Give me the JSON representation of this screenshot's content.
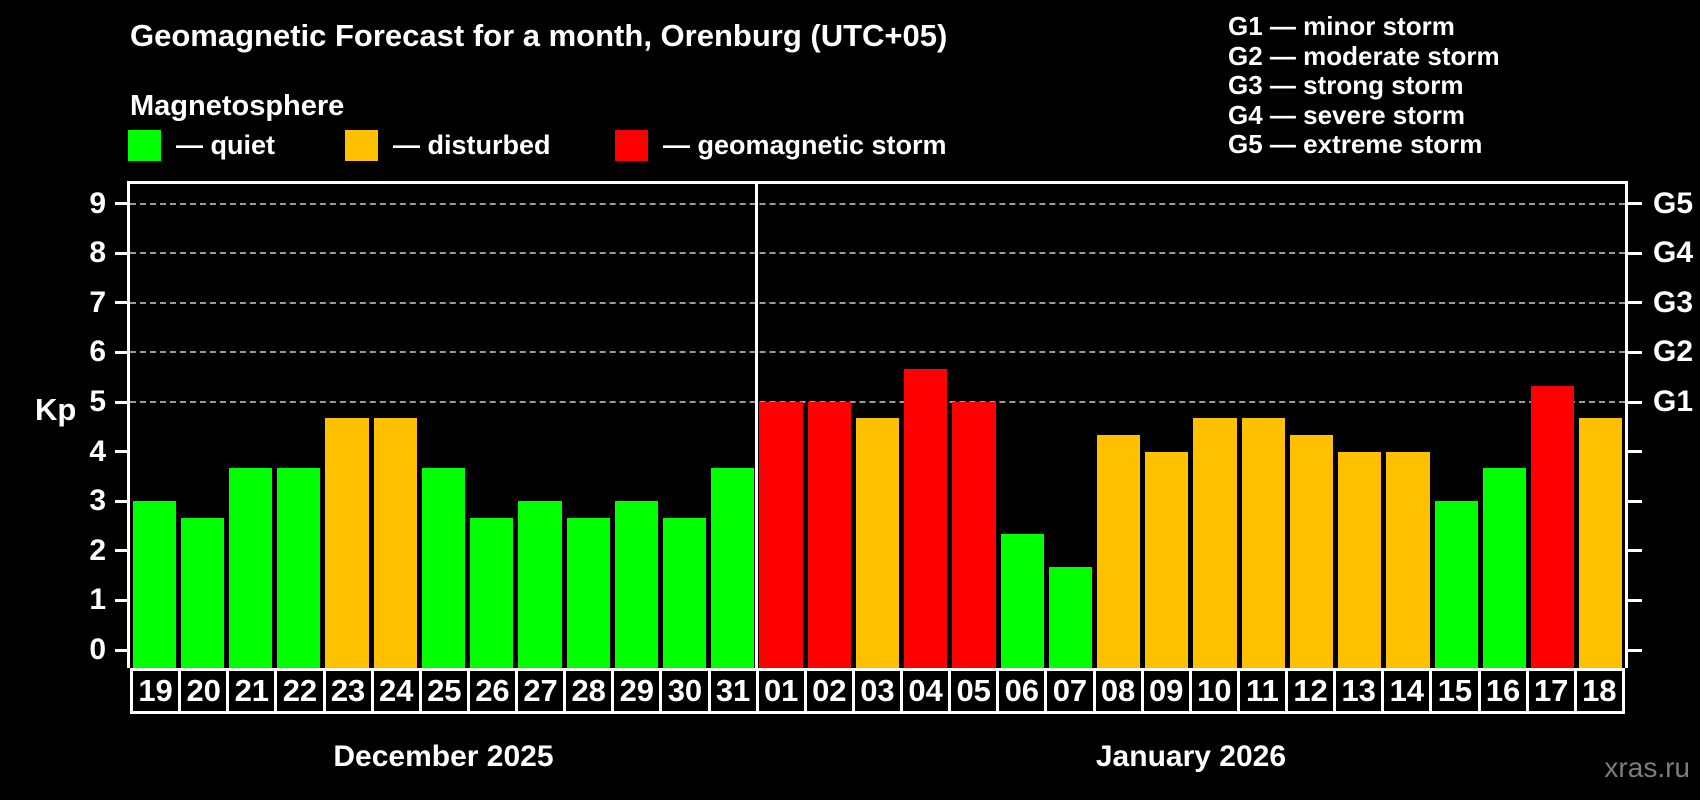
{
  "header": {
    "title": "Geomagnetic Forecast for a month, Orenburg (UTC+05)",
    "subtitle": "Magnetosphere",
    "legend": [
      {
        "key": "quiet",
        "label": "— quiet",
        "color": "#00ff00"
      },
      {
        "key": "disturbed",
        "label": "— disturbed",
        "color": "#ffc000"
      },
      {
        "key": "storm",
        "label": "— geomagnetic storm",
        "color": "#ff0000"
      }
    ],
    "g_scale": [
      "G1 — minor storm",
      "G2 — moderate storm",
      "G3 — strong storm",
      "G4 — severe storm",
      "G5 — extreme storm"
    ]
  },
  "chart_data": {
    "type": "bar",
    "title": "Geomagnetic Forecast for a month, Orenburg (UTC+05)",
    "subtitle": "Magnetosphere",
    "ylabel": "Kp",
    "ylim": [
      0,
      9
    ],
    "y_ticks": [
      0,
      1,
      2,
      3,
      4,
      5,
      6,
      7,
      8,
      9
    ],
    "grid": "horizontal dashed lines at Kp 5–9 (storm levels)",
    "legend_position": "top",
    "g_levels": [
      {
        "kp": 5,
        "label": "G1"
      },
      {
        "kp": 6,
        "label": "G2"
      },
      {
        "kp": 7,
        "label": "G3"
      },
      {
        "kp": 8,
        "label": "G4"
      },
      {
        "kp": 9,
        "label": "G5"
      }
    ],
    "level_colors": {
      "quiet": "#00ff00",
      "disturbed": "#ffc000",
      "storm": "#ff0000"
    },
    "months": [
      {
        "label": "December 2025",
        "days": [
          {
            "day": "19",
            "kp": 3.0,
            "level": "quiet"
          },
          {
            "day": "20",
            "kp": 2.67,
            "level": "quiet"
          },
          {
            "day": "21",
            "kp": 3.67,
            "level": "quiet"
          },
          {
            "day": "22",
            "kp": 3.67,
            "level": "quiet"
          },
          {
            "day": "23",
            "kp": 4.67,
            "level": "disturbed"
          },
          {
            "day": "24",
            "kp": 4.67,
            "level": "disturbed"
          },
          {
            "day": "25",
            "kp": 3.67,
            "level": "quiet"
          },
          {
            "day": "26",
            "kp": 2.67,
            "level": "quiet"
          },
          {
            "day": "27",
            "kp": 3.0,
            "level": "quiet"
          },
          {
            "day": "28",
            "kp": 2.67,
            "level": "quiet"
          },
          {
            "day": "29",
            "kp": 3.0,
            "level": "quiet"
          },
          {
            "day": "30",
            "kp": 2.67,
            "level": "quiet"
          },
          {
            "day": "31",
            "kp": 3.67,
            "level": "quiet"
          }
        ]
      },
      {
        "label": "January 2026",
        "days": [
          {
            "day": "01",
            "kp": 5.0,
            "level": "storm"
          },
          {
            "day": "02",
            "kp": 5.0,
            "level": "storm"
          },
          {
            "day": "03",
            "kp": 4.67,
            "level": "disturbed"
          },
          {
            "day": "04",
            "kp": 5.67,
            "level": "storm"
          },
          {
            "day": "05",
            "kp": 5.0,
            "level": "storm"
          },
          {
            "day": "06",
            "kp": 2.33,
            "level": "quiet"
          },
          {
            "day": "07",
            "kp": 1.67,
            "level": "quiet"
          },
          {
            "day": "08",
            "kp": 4.33,
            "level": "disturbed"
          },
          {
            "day": "09",
            "kp": 4.0,
            "level": "disturbed"
          },
          {
            "day": "10",
            "kp": 4.67,
            "level": "disturbed"
          },
          {
            "day": "11",
            "kp": 4.67,
            "level": "disturbed"
          },
          {
            "day": "12",
            "kp": 4.33,
            "level": "disturbed"
          },
          {
            "day": "13",
            "kp": 4.0,
            "level": "disturbed"
          },
          {
            "day": "14",
            "kp": 4.0,
            "level": "disturbed"
          },
          {
            "day": "15",
            "kp": 3.0,
            "level": "quiet"
          },
          {
            "day": "16",
            "kp": 3.67,
            "level": "quiet"
          },
          {
            "day": "17",
            "kp": 5.33,
            "level": "storm"
          },
          {
            "day": "18",
            "kp": 4.67,
            "level": "disturbed"
          }
        ]
      }
    ]
  },
  "footer": {
    "watermark": "xras.ru"
  }
}
